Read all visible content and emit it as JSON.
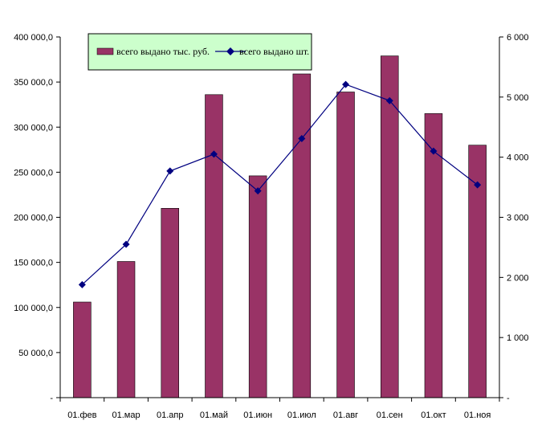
{
  "chart_data": {
    "type": "bar",
    "categories": [
      "01.фев",
      "01.мар",
      "01.апр",
      "01.май",
      "01.июн",
      "01.июл",
      "01.авг",
      "01.сен",
      "01.окт",
      "01.ноя"
    ],
    "series": [
      {
        "name": "всего выдано тыс. руб.",
        "type": "bar",
        "axis": "left",
        "color": "#993366",
        "values": [
          106000,
          151000,
          210000,
          336000,
          246000,
          359000,
          339000,
          379000,
          315000,
          280000
        ]
      },
      {
        "name": "всего выдано шт.",
        "type": "line",
        "axis": "right",
        "color": "#000080",
        "marker": "diamond",
        "values": [
          1880,
          2550,
          3770,
          4050,
          3440,
          4310,
          5210,
          4940,
          4100,
          3540
        ]
      }
    ],
    "left_axis": {
      "ylim": [
        0,
        400000
      ],
      "ticks": [
        0,
        50000,
        100000,
        150000,
        200000,
        250000,
        300000,
        350000,
        400000
      ],
      "tick_labels": [
        "-",
        "50 000,0",
        "100 000,0",
        "150 000,0",
        "200 000,0",
        "250 000,0",
        "300 000,0",
        "350 000,0",
        "400 000,0"
      ]
    },
    "right_axis": {
      "ylim": [
        0,
        6000
      ],
      "ticks": [
        0,
        1000,
        2000,
        3000,
        4000,
        5000,
        6000
      ],
      "tick_labels": [
        "-",
        "1 000",
        "2 000",
        "3 000",
        "4 000",
        "5 000",
        "6 000"
      ]
    },
    "grid": false,
    "legend": {
      "placement": "top-left",
      "background": "#ccffcc"
    }
  }
}
